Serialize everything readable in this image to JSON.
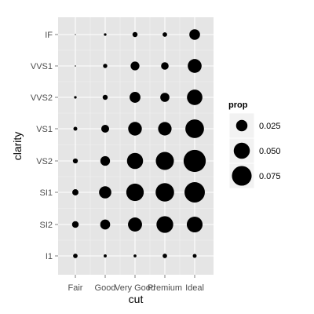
{
  "chart_data": {
    "type": "scatter",
    "xlabel": "cut",
    "ylabel": "clarity",
    "x_categories": [
      "Fair",
      "Good",
      "Very Good",
      "Premium",
      "Ideal"
    ],
    "y_categories": [
      "I1",
      "SI2",
      "SI1",
      "VS2",
      "VS1",
      "VVS2",
      "VVS1",
      "IF"
    ],
    "points": [
      {
        "x": "Fair",
        "y": "IF",
        "prop": 0.0002
      },
      {
        "x": "Good",
        "y": "IF",
        "prop": 0.0013
      },
      {
        "x": "Very Good",
        "y": "IF",
        "prop": 0.005
      },
      {
        "x": "Premium",
        "y": "IF",
        "prop": 0.004
      },
      {
        "x": "Ideal",
        "y": "IF",
        "prop": 0.022
      },
      {
        "x": "Fair",
        "y": "VVS1",
        "prop": 0.0003
      },
      {
        "x": "Good",
        "y": "VVS1",
        "prop": 0.0035
      },
      {
        "x": "Very Good",
        "y": "VVS1",
        "prop": 0.015
      },
      {
        "x": "Premium",
        "y": "VVS1",
        "prop": 0.011
      },
      {
        "x": "Ideal",
        "y": "VVS1",
        "prop": 0.037
      },
      {
        "x": "Fair",
        "y": "VVS2",
        "prop": 0.0013
      },
      {
        "x": "Good",
        "y": "VVS2",
        "prop": 0.005
      },
      {
        "x": "Very Good",
        "y": "VVS2",
        "prop": 0.023
      },
      {
        "x": "Premium",
        "y": "VVS2",
        "prop": 0.016
      },
      {
        "x": "Ideal",
        "y": "VVS2",
        "prop": 0.046
      },
      {
        "x": "Fair",
        "y": "VS1",
        "prop": 0.003
      },
      {
        "x": "Good",
        "y": "VS1",
        "prop": 0.012
      },
      {
        "x": "Very Good",
        "y": "VS1",
        "prop": 0.036
      },
      {
        "x": "Premium",
        "y": "VS1",
        "prop": 0.035
      },
      {
        "x": "Ideal",
        "y": "VS1",
        "prop": 0.067
      },
      {
        "x": "Fair",
        "y": "VS2",
        "prop": 0.0048
      },
      {
        "x": "Good",
        "y": "VS2",
        "prop": 0.018
      },
      {
        "x": "Very Good",
        "y": "VS2",
        "prop": 0.05
      },
      {
        "x": "Premium",
        "y": "VS2",
        "prop": 0.063
      },
      {
        "x": "Ideal",
        "y": "VS2",
        "prop": 0.095
      },
      {
        "x": "Fair",
        "y": "SI1",
        "prop": 0.0075
      },
      {
        "x": "Good",
        "y": "SI1",
        "prop": 0.029
      },
      {
        "x": "Very Good",
        "y": "SI1",
        "prop": 0.059
      },
      {
        "x": "Premium",
        "y": "SI1",
        "prop": 0.066
      },
      {
        "x": "Ideal",
        "y": "SI1",
        "prop": 0.08
      },
      {
        "x": "Fair",
        "y": "SI2",
        "prop": 0.0086
      },
      {
        "x": "Good",
        "y": "SI2",
        "prop": 0.019
      },
      {
        "x": "Very Good",
        "y": "SI2",
        "prop": 0.038
      },
      {
        "x": "Premium",
        "y": "SI2",
        "prop": 0.054
      },
      {
        "x": "Ideal",
        "y": "SI2",
        "prop": 0.048
      },
      {
        "x": "Fair",
        "y": "I1",
        "prop": 0.0039
      },
      {
        "x": "Good",
        "y": "I1",
        "prop": 0.0018
      },
      {
        "x": "Very Good",
        "y": "I1",
        "prop": 0.0016
      },
      {
        "x": "Premium",
        "y": "I1",
        "prop": 0.0038
      },
      {
        "x": "Ideal",
        "y": "I1",
        "prop": 0.0029
      }
    ],
    "legend": {
      "title": "prop",
      "entries": [
        {
          "label": "0.025",
          "value": 0.025
        },
        {
          "label": "0.050",
          "value": 0.05
        },
        {
          "label": "0.075",
          "value": 0.075
        }
      ],
      "position": "right"
    },
    "colors": {
      "panel_background": "#e5e5e5",
      "grid_major": "#ffffff",
      "grid_minor": "#f2f2f2",
      "point": "#000000",
      "tick_label": "#4d4d4d"
    },
    "grid": true
  }
}
